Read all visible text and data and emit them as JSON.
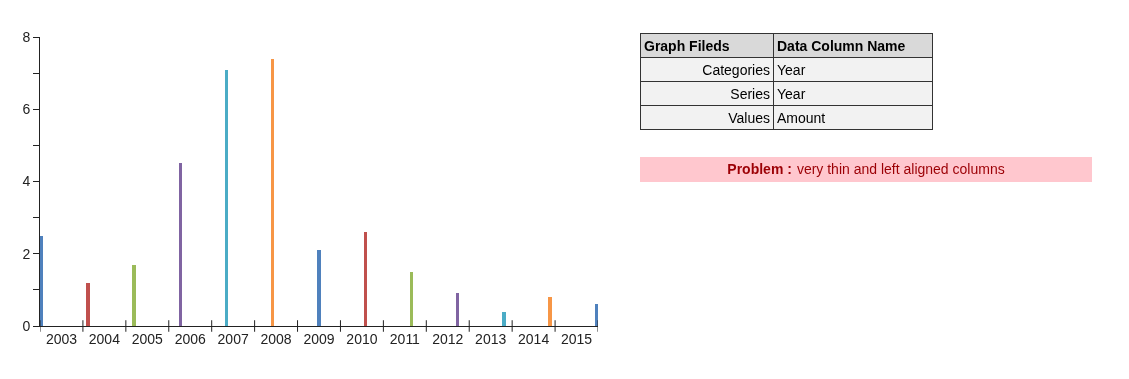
{
  "chart_data": [
    {
      "type": "bar",
      "categories": [
        "2003",
        "2004",
        "2005",
        "2006",
        "2007",
        "2008",
        "2009",
        "2010",
        "2011",
        "2012",
        "2013",
        "2014",
        "2015"
      ],
      "values": [
        2.5,
        1.2,
        1.7,
        4.5,
        7.1,
        7.4,
        2.1,
        2.6,
        1.5,
        0.9,
        0.4,
        0.8,
        0.6
      ],
      "colors": [
        "#4f81bd",
        "#c0504d",
        "#9bbb59",
        "#8064a2",
        "#4bacc6",
        "#f79646",
        "#4f81bd",
        "#c0504d",
        "#9bbb59",
        "#8064a2",
        "#4bacc6",
        "#f79646",
        "#4f81bd"
      ],
      "ylim": [
        0,
        8
      ],
      "yticks": [
        0,
        {
          "value": 1,
          "label": null
        },
        2,
        {
          "value": 3,
          "label": null
        },
        4,
        {
          "value": 5,
          "label": null
        },
        6,
        {
          "value": 7,
          "label": null
        },
        8
      ]
    },
    {
      "type": "other",
      "annotations": [
        "Graph Fileds",
        "Data Column Name",
        "Categories",
        "Year",
        "Series",
        "Year",
        "Values",
        "Amount",
        "Problem :",
        "very thin and left aligned columns"
      ]
    }
  ]
}
